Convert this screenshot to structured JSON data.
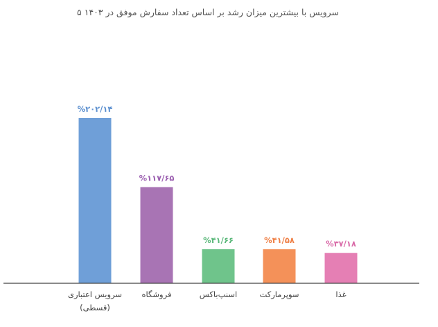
{
  "chart_data": {
    "type": "bar",
    "title": "۵ سرویس با بیشترین میزان رشد بر اساس تعداد سفارش موفق در ۱۴۰۳",
    "categories": [
      [
        "سرویس اعتباری",
        "(قسطی)"
      ],
      [
        "فروشگاه"
      ],
      [
        "اسنپ‌باکس"
      ],
      [
        "سوپرمارکت"
      ],
      [
        "غذا"
      ]
    ],
    "values": [
      202.14,
      117.65,
      41.66,
      41.58,
      37.18
    ],
    "value_labels": [
      "%۲۰۲/۱۴",
      "%۱۱۷/۶۵",
      "%۴۱/۶۶",
      "%۴۱/۵۸",
      "%۳۷/۱۸"
    ],
    "colors": [
      "#6f9fd8",
      "#a874b4",
      "#6fc48b",
      "#f49159",
      "#e57fb4"
    ],
    "label_colors": [
      "#5b8fcf",
      "#9b5fb0",
      "#5bb87a",
      "#ef7f45",
      "#d96aa8"
    ],
    "ylim": [
      0,
      202.14
    ],
    "grid": false,
    "legend": "none"
  }
}
